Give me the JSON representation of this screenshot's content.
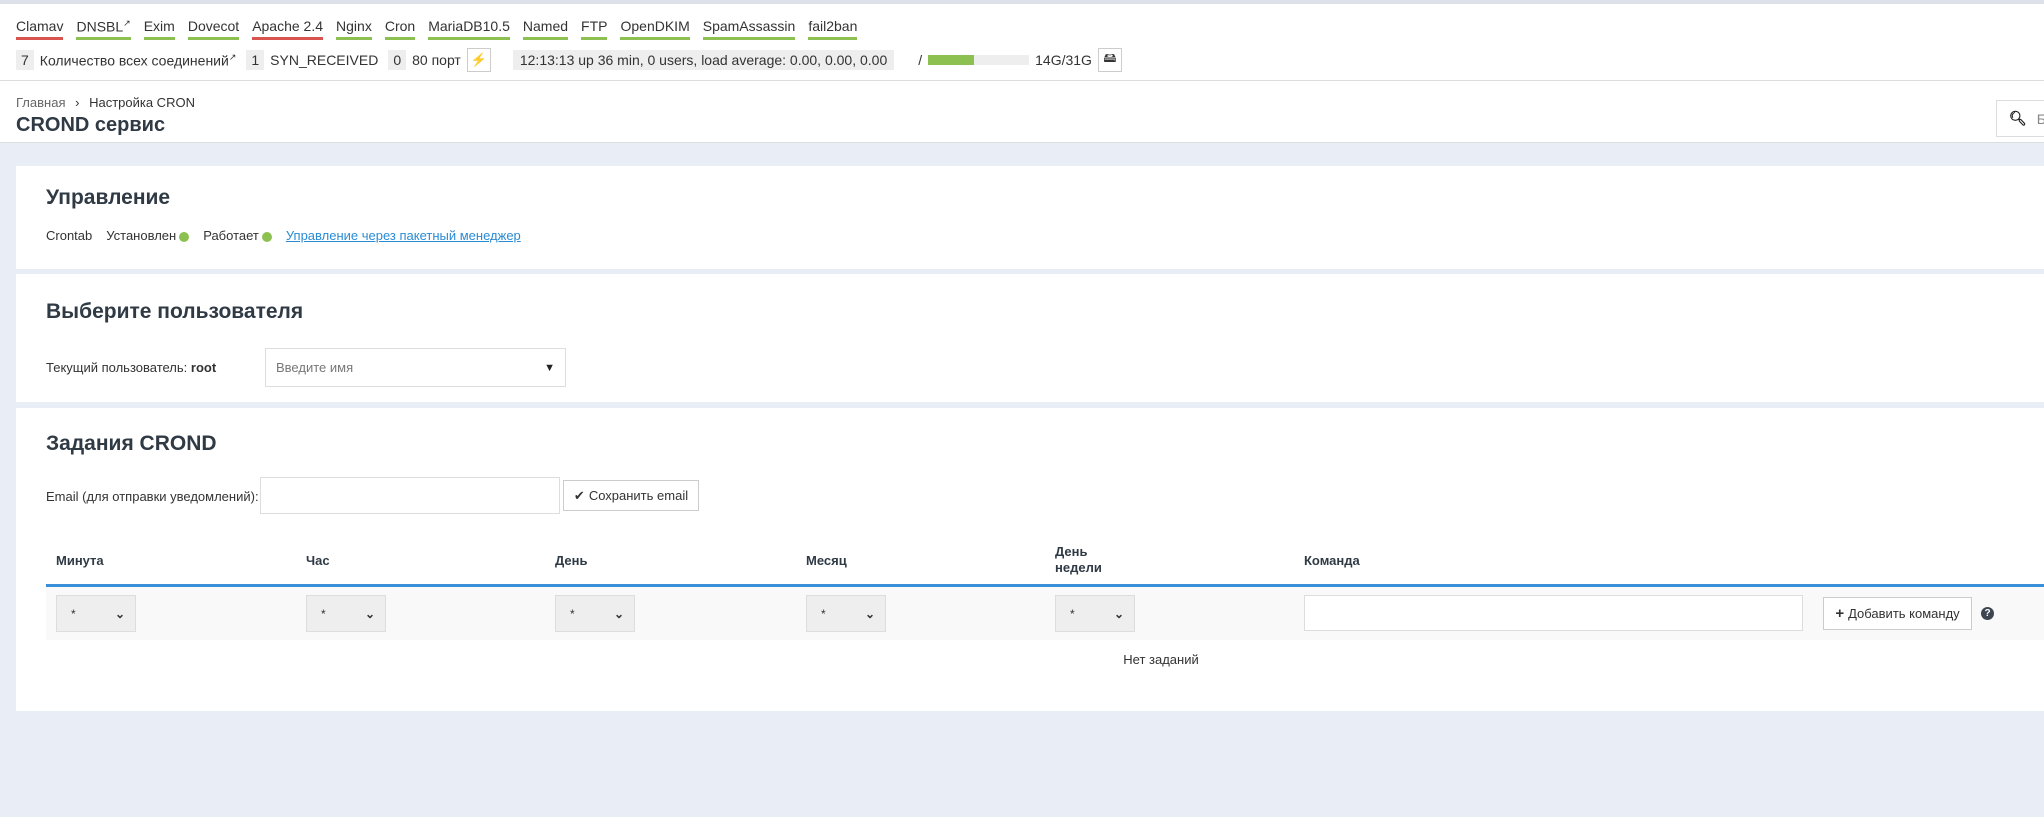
{
  "services": [
    {
      "label": "Clamav",
      "status": "red"
    },
    {
      "label": "DNSBL",
      "status": "green",
      "external": true
    },
    {
      "label": "Exim",
      "status": "green"
    },
    {
      "label": "Dovecot",
      "status": "green"
    },
    {
      "label": "Apache 2.4",
      "status": "red"
    },
    {
      "label": "Nginx",
      "status": "green"
    },
    {
      "label": "Cron",
      "status": "green"
    },
    {
      "label": "MariaDB10.5",
      "status": "green"
    },
    {
      "label": "Named",
      "status": "green"
    },
    {
      "label": "FTP",
      "status": "green"
    },
    {
      "label": "OpenDKIM",
      "status": "green"
    },
    {
      "label": "SpamAssassin",
      "status": "green"
    },
    {
      "label": "fail2ban",
      "status": "green"
    }
  ],
  "colors": {
    "red": "#d9534f",
    "green": "#8cc152",
    "link": "#2a8bd5",
    "accent": "#3a8fd9"
  },
  "stats": {
    "connections_count": "7",
    "connections_label": "Количество всех соединений",
    "syn_count": "1",
    "syn_label": "SYN_RECEIVED",
    "port_count": "0",
    "port_label": "80 порт",
    "uptime": "12:13:13 up 36 min, 0 users, load average: 0.00, 0.00, 0.00",
    "disk_mount": "/",
    "disk_usage_percent": 45,
    "disk_label": "14G/31G"
  },
  "breadcrumb": {
    "home": "Главная",
    "current": "Настройка CRON"
  },
  "page_title": "CROND сервис",
  "search": {
    "placeholder": "Б"
  },
  "management": {
    "title": "Управление",
    "crontab": "Crontab",
    "installed": "Установлен",
    "running": "Работает",
    "link": "Управление через пакетный менеджер"
  },
  "user": {
    "title": "Выберите пользователя",
    "current_label": "Текущий пользователь:",
    "current_value": "root",
    "placeholder": "Введите имя"
  },
  "jobs": {
    "title": "Задания CROND",
    "email_label": "Email (для отправки уведомлений):",
    "email_value": "",
    "save_email": "Сохранить email",
    "columns": [
      "Минута",
      "Час",
      "День",
      "Месяц",
      "День недели",
      "Команда"
    ],
    "selects": [
      "*",
      "*",
      "*",
      "*",
      "*"
    ],
    "command_value": "",
    "add_command": "Добавить команду",
    "empty": "Нет заданий"
  }
}
